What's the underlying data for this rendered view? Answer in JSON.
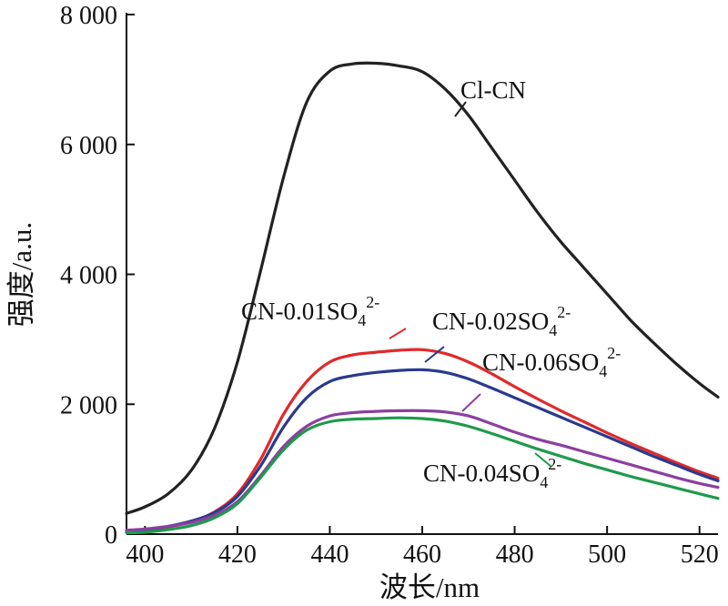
{
  "chart_data": {
    "type": "line",
    "title": "",
    "xlabel": "波长/nm",
    "ylabel": "强度/a.u.",
    "xlim": [
      396,
      524
    ],
    "ylim": [
      0,
      8000
    ],
    "x_ticks": [
      400,
      420,
      440,
      460,
      480,
      500,
      520
    ],
    "x_tick_labels": [
      "400",
      "420",
      "440",
      "460",
      "480",
      "500",
      "520"
    ],
    "y_ticks": [
      0,
      2000,
      4000,
      6000,
      8000
    ],
    "y_tick_labels": [
      "0",
      "2 000",
      "4 000",
      "6 000",
      "8 000"
    ],
    "grid": false,
    "legend": "inline labels",
    "series": [
      {
        "name": "Cl-CN",
        "label_base": "Cl-CN",
        "label_sub": "",
        "label_sup": "",
        "color": "#222222",
        "x": [
          396,
          400,
          405,
          410,
          415,
          420,
          425,
          430,
          435,
          440,
          445,
          450,
          455,
          460,
          465,
          470,
          475,
          480,
          485,
          490,
          495,
          500,
          505,
          510,
          515,
          520,
          524
        ],
        "y": [
          320,
          420,
          620,
          980,
          1620,
          2650,
          4050,
          5500,
          6650,
          7130,
          7240,
          7250,
          7210,
          7120,
          6850,
          6450,
          5950,
          5450,
          4950,
          4500,
          4100,
          3700,
          3300,
          2950,
          2620,
          2320,
          2110
        ]
      },
      {
        "name": "CN-0.01SO42-",
        "label_base": "CN-0.01SO",
        "label_sub": "4",
        "label_sup": "2-",
        "color": "#e0292b",
        "x": [
          396,
          400,
          405,
          410,
          415,
          420,
          425,
          430,
          435,
          440,
          445,
          450,
          455,
          460,
          465,
          470,
          475,
          480,
          485,
          490,
          495,
          500,
          505,
          510,
          515,
          520,
          524
        ],
        "y": [
          40,
          60,
          110,
          190,
          340,
          620,
          1150,
          1850,
          2350,
          2650,
          2760,
          2800,
          2830,
          2840,
          2780,
          2650,
          2470,
          2270,
          2080,
          1900,
          1730,
          1560,
          1400,
          1250,
          1100,
          960,
          860
        ]
      },
      {
        "name": "CN-0.02SO42-",
        "label_base": "CN-0.02SO",
        "label_sub": "4",
        "label_sup": "2-",
        "color": "#2a3a8e",
        "x": [
          396,
          400,
          405,
          410,
          415,
          420,
          425,
          430,
          435,
          440,
          445,
          450,
          455,
          460,
          465,
          470,
          475,
          480,
          485,
          490,
          495,
          500,
          505,
          510,
          515,
          520,
          524
        ],
        "y": [
          50,
          70,
          120,
          200,
          330,
          580,
          1050,
          1650,
          2100,
          2350,
          2440,
          2490,
          2520,
          2530,
          2490,
          2390,
          2250,
          2100,
          1950,
          1800,
          1650,
          1500,
          1350,
          1200,
          1060,
          920,
          820
        ]
      },
      {
        "name": "CN-0.06SO42-",
        "label_base": "CN-0.06SO",
        "label_sub": "4",
        "label_sup": "2-",
        "color": "#8c3fa0",
        "x": [
          396,
          400,
          405,
          410,
          415,
          420,
          425,
          430,
          435,
          440,
          445,
          450,
          455,
          460,
          465,
          470,
          475,
          480,
          485,
          490,
          495,
          500,
          505,
          510,
          515,
          520,
          524
        ],
        "y": [
          60,
          80,
          120,
          180,
          290,
          500,
          900,
          1350,
          1660,
          1820,
          1870,
          1890,
          1900,
          1900,
          1880,
          1820,
          1700,
          1570,
          1460,
          1370,
          1270,
          1170,
          1070,
          970,
          870,
          780,
          720
        ]
      },
      {
        "name": "CN-0.04SO42-",
        "label_base": "CN-0.04SO",
        "label_sub": "4",
        "label_sup": "2-",
        "color": "#1e9a4c",
        "x": [
          396,
          400,
          405,
          410,
          415,
          420,
          425,
          430,
          435,
          440,
          445,
          450,
          455,
          460,
          465,
          470,
          475,
          480,
          485,
          490,
          495,
          500,
          505,
          510,
          515,
          520,
          524
        ],
        "y": [
          20,
          30,
          70,
          130,
          250,
          470,
          870,
          1300,
          1600,
          1730,
          1770,
          1780,
          1790,
          1780,
          1740,
          1660,
          1550,
          1430,
          1310,
          1200,
          1090,
          990,
          890,
          800,
          710,
          620,
          550
        ]
      }
    ]
  }
}
